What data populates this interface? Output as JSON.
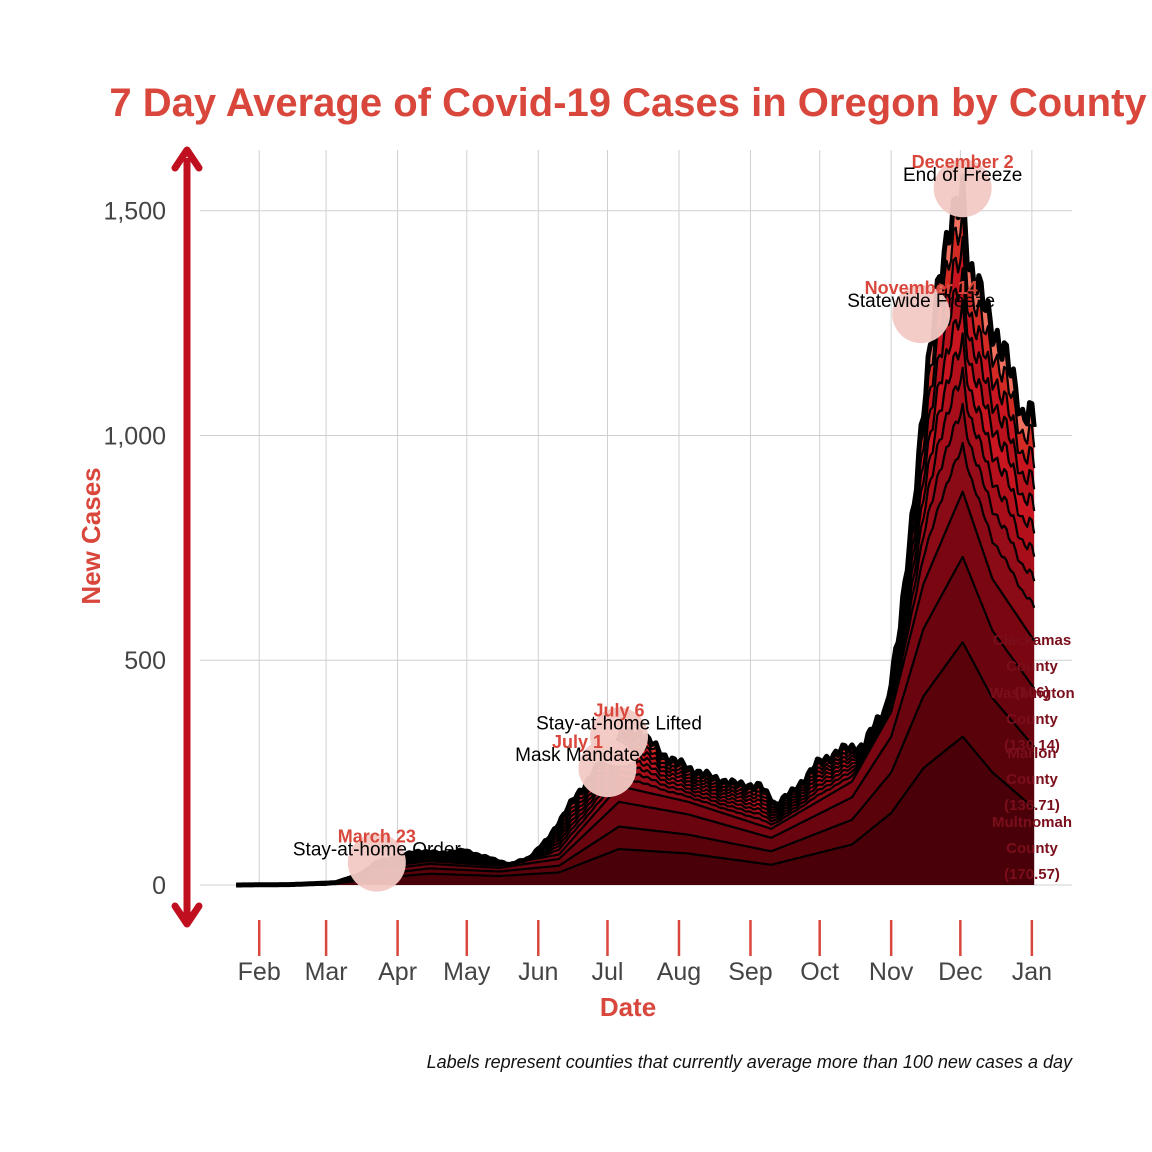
{
  "chart_data": {
    "type": "area",
    "title": "7 Day Average of Covid-19 Cases in Oregon by County",
    "xlabel": "Date",
    "ylabel": "New Cases",
    "caption": "Labels represent counties that currently average more than 100 new cases a day",
    "x_ticks": [
      "Feb",
      "Mar",
      "Apr",
      "May",
      "Jun",
      "Jul",
      "Aug",
      "Sep",
      "Oct",
      "Nov",
      "Dec",
      "Jan"
    ],
    "y_ticks": [
      "0",
      "500",
      "1,000",
      "1,500"
    ],
    "y_tick_values": [
      0,
      500,
      1000,
      1500
    ],
    "ylim": [
      0,
      1600
    ],
    "grid": true,
    "stacked": true,
    "colors": {
      "title": "#d9473c",
      "axis_arrow": "#c0101f",
      "stack_dark": "#4a0008",
      "stack_mid": "#8a0a16",
      "stack_light": "#c8151f",
      "stack_highlight": "#f07060",
      "event_marker": "#f2c9c4",
      "county_label": "#7a0e1b"
    },
    "total": {
      "x": [
        "2020-01-22",
        "2020-02-15",
        "2020-03-05",
        "2020-03-15",
        "2020-03-23",
        "2020-04-01",
        "2020-04-10",
        "2020-04-20",
        "2020-04-30",
        "2020-05-10",
        "2020-05-20",
        "2020-05-28",
        "2020-06-05",
        "2020-06-15",
        "2020-06-25",
        "2020-07-01",
        "2020-07-06",
        "2020-07-15",
        "2020-07-25",
        "2020-08-05",
        "2020-08-15",
        "2020-08-25",
        "2020-09-05",
        "2020-09-12",
        "2020-09-20",
        "2020-09-30",
        "2020-10-10",
        "2020-10-20",
        "2020-10-30",
        "2020-11-05",
        "2020-11-10",
        "2020-11-14",
        "2020-11-18",
        "2020-11-22",
        "2020-11-26",
        "2020-12-01",
        "2020-12-02",
        "2020-12-05",
        "2020-12-10",
        "2020-12-15",
        "2020-12-20",
        "2020-12-25",
        "2020-12-28",
        "2020-12-31",
        "2021-01-02"
      ],
      "y": [
        0,
        1,
        5,
        20,
        50,
        62,
        75,
        70,
        76,
        60,
        45,
        60,
        100,
        180,
        250,
        290,
        330,
        340,
        290,
        260,
        240,
        225,
        220,
        180,
        210,
        270,
        300,
        310,
        400,
        570,
        820,
        1000,
        1180,
        1380,
        1440,
        1520,
        1550,
        1380,
        1300,
        1250,
        1180,
        1100,
        1050,
        1060,
        1020
      ]
    },
    "series": [
      {
        "name": "Multnomah County",
        "x": [
          "2020-01-22",
          "2020-03-01",
          "2020-03-23",
          "2020-04-15",
          "2020-05-15",
          "2020-06-10",
          "2020-07-06",
          "2020-08-05",
          "2020-09-10",
          "2020-10-15",
          "2020-11-01",
          "2020-11-15",
          "2020-12-02",
          "2020-12-15",
          "2021-01-02"
        ],
        "y": [
          0,
          1,
          15,
          25,
          20,
          28,
          80,
          70,
          45,
          90,
          160,
          260,
          330,
          250,
          170.57
        ]
      },
      {
        "name": "Marion County",
        "x": [
          "2020-01-22",
          "2020-03-01",
          "2020-03-23",
          "2020-04-15",
          "2020-05-15",
          "2020-06-10",
          "2020-07-06",
          "2020-08-05",
          "2020-09-10",
          "2020-10-15",
          "2020-11-01",
          "2020-11-15",
          "2020-12-02",
          "2020-12-15",
          "2021-01-02"
        ],
        "y": [
          0,
          0,
          8,
          12,
          10,
          15,
          50,
          42,
          30,
          55,
          90,
          160,
          210,
          165,
          136.71
        ]
      },
      {
        "name": "Washington County",
        "x": [
          "2020-01-22",
          "2020-03-01",
          "2020-03-23",
          "2020-04-15",
          "2020-05-15",
          "2020-06-10",
          "2020-07-06",
          "2020-08-05",
          "2020-09-10",
          "2020-10-15",
          "2020-11-01",
          "2020-11-15",
          "2020-12-02",
          "2020-12-15",
          "2021-01-02"
        ],
        "y": [
          0,
          0,
          10,
          10,
          8,
          15,
          55,
          45,
          30,
          50,
          80,
          150,
          190,
          150,
          130.14
        ]
      },
      {
        "name": "Clackamas County",
        "x": [
          "2020-01-22",
          "2020-03-01",
          "2020-03-23",
          "2020-04-15",
          "2020-05-15",
          "2020-06-10",
          "2020-07-06",
          "2020-08-05",
          "2020-09-10",
          "2020-10-15",
          "2020-11-01",
          "2020-11-15",
          "2020-12-02",
          "2020-12-15",
          "2021-01-02"
        ],
        "y": [
          0,
          0,
          6,
          6,
          5,
          10,
          35,
          28,
          20,
          35,
          55,
          100,
          145,
          115,
          106
        ]
      }
    ],
    "events": [
      {
        "date": "March 23",
        "label": "Stay-at-home Order",
        "x": "2020-03-23",
        "y": 50
      },
      {
        "date": "July 1",
        "label": "Mask Mandate",
        "x": "2020-07-01",
        "y": 260
      },
      {
        "date": "July 6",
        "label": "Stay-at-home Lifted",
        "x": "2020-07-06",
        "y": 330
      },
      {
        "date": "November 14",
        "label": "Statewide Freeze",
        "x": "2020-11-14",
        "y": 1270
      },
      {
        "date": "December 2",
        "label": "End of Freeze",
        "x": "2020-12-02",
        "y": 1550
      }
    ],
    "county_labels": [
      {
        "name_line1": "Clackamas",
        "name_line2": "County",
        "value": "(106)"
      },
      {
        "name_line1": "Washington",
        "name_line2": "County",
        "value": "(130.14)"
      },
      {
        "name_line1": "Marion",
        "name_line2": "County",
        "value": "(136.71)"
      },
      {
        "name_line1": "Multnomah",
        "name_line2": "County",
        "value": "(170.57)"
      }
    ]
  }
}
